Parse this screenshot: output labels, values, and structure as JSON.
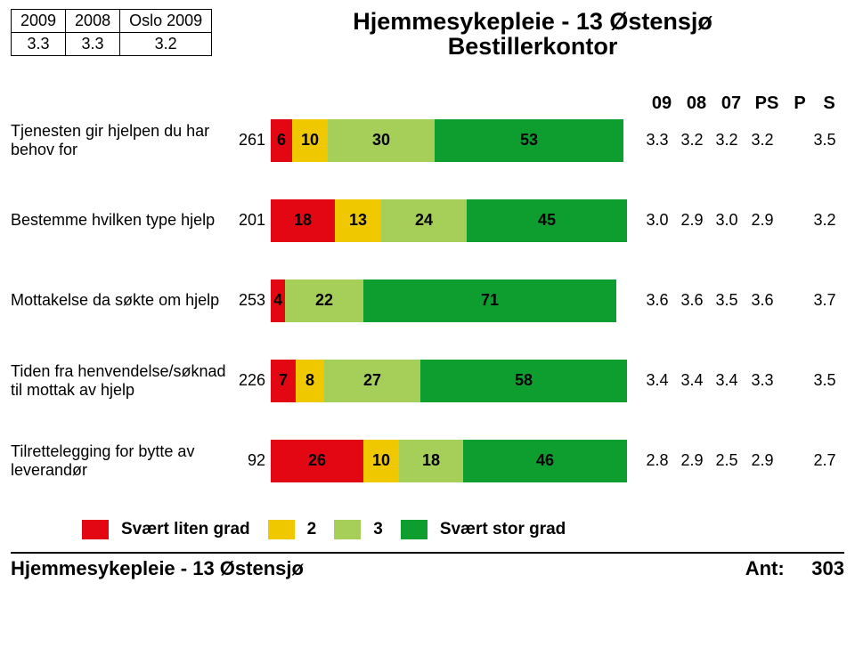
{
  "colors": {
    "c1": "#e30613",
    "c2": "#f0c800",
    "c3": "#a6cf5a",
    "c4": "#0e9e2f",
    "border": "#000000",
    "bg": "#ffffff"
  },
  "title_line1": "Hjemmesykepleie - 13 Østensjø",
  "title_line2": "Bestillerkontor",
  "year_table": {
    "headers": [
      "2009",
      "2008",
      "Oslo 2009"
    ],
    "values": [
      "3.3",
      "3.3",
      "3.2"
    ]
  },
  "col_headers": [
    "09",
    "08",
    "07",
    "PS",
    "P",
    "S"
  ],
  "rows": [
    {
      "label": "Tjenesten gir hjelpen du har behov for",
      "n": "261",
      "segs": [
        6,
        10,
        30,
        53
      ],
      "seg_labels": [
        "6",
        "10",
        "30",
        "53"
      ],
      "scores": [
        "3.3",
        "3.2",
        "3.2",
        "3.2",
        "",
        "3.5"
      ]
    },
    {
      "label": "Bestemme hvilken type hjelp",
      "n": "201",
      "segs": [
        18,
        13,
        24,
        45
      ],
      "seg_labels": [
        "18",
        "13",
        "24",
        "45"
      ],
      "scores": [
        "3.0",
        "2.9",
        "3.0",
        "2.9",
        "",
        "3.2"
      ]
    },
    {
      "label": "Mottakelse da søkte om hjelp",
      "n": "253",
      "segs": [
        4,
        0,
        22,
        71
      ],
      "seg_labels": [
        "4",
        "",
        "22",
        "71"
      ],
      "scores": [
        "3.6",
        "3.6",
        "3.5",
        "3.6",
        "",
        "3.7"
      ]
    },
    {
      "label": "Tiden fra henvendelse/søknad til mottak av hjelp",
      "n": "226",
      "segs": [
        7,
        8,
        27,
        58
      ],
      "seg_labels": [
        "7",
        "8",
        "27",
        "58"
      ],
      "scores": [
        "3.4",
        "3.4",
        "3.4",
        "3.3",
        "",
        "3.5"
      ]
    },
    {
      "label": "Tilrettelegging for bytte av leverandør",
      "n": "92",
      "segs": [
        26,
        10,
        18,
        46
      ],
      "seg_labels": [
        "26",
        "10",
        "18",
        "46"
      ],
      "scores": [
        "2.8",
        "2.9",
        "2.5",
        "2.9",
        "",
        "2.7"
      ]
    }
  ],
  "legend": {
    "l1": "Svært liten grad",
    "l2": "2",
    "l3": "3",
    "l4": "Svært stor grad"
  },
  "footer": {
    "left": "Hjemmesykepleie - 13 Østensjø",
    "right_label": "Ant:",
    "right_value": "303"
  }
}
